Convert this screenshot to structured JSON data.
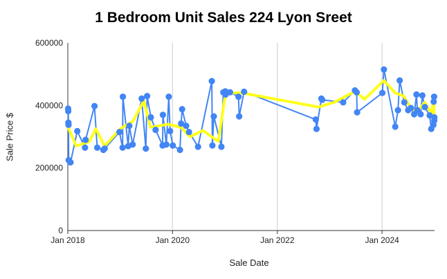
{
  "chart_data": {
    "type": "scatter",
    "title": "1 Bedroom Unit Sales 224 Lyon Sreet",
    "xlabel": "Sale Date",
    "ylabel": "Sale Price $",
    "xlim": [
      "2018-01-01",
      "2024-12-31"
    ],
    "ylim": [
      0,
      600000
    ],
    "x_ticks": [
      {
        "date": "2018-01-01",
        "label": "Jan 2018"
      },
      {
        "date": "2020-01-01",
        "label": "Jan 2020"
      },
      {
        "date": "2022-01-01",
        "label": "Jan 2022"
      },
      {
        "date": "2024-01-01",
        "label": "Jan 2024"
      }
    ],
    "y_ticks": [
      {
        "value": 0,
        "label": "0"
      },
      {
        "value": 200000,
        "label": "200000"
      },
      {
        "value": 400000,
        "label": "400000"
      },
      {
        "value": 600000,
        "label": "600000"
      }
    ],
    "grid": {
      "vertical": true,
      "horizontal": false
    },
    "legend": "none",
    "colors": {
      "sales": "#4285f4",
      "trend": "#ffff1a",
      "axis": "#333333",
      "grid": "#cccccc"
    },
    "series": [
      {
        "style": "line-with-points",
        "points": [
          [
            "2018-01-03",
            390000
          ],
          [
            "2018-01-04",
            382000
          ],
          [
            "2018-01-05",
            345000
          ],
          [
            "2018-01-06",
            338000
          ],
          [
            "2018-01-07",
            225000
          ],
          [
            "2018-01-20",
            218000
          ],
          [
            "2018-03-08",
            318000
          ],
          [
            "2018-05-01",
            265000
          ],
          [
            "2018-05-05",
            290000
          ],
          [
            "2018-07-06",
            398000
          ],
          [
            "2018-07-25",
            265000
          ],
          [
            "2018-09-06",
            258000
          ],
          [
            "2018-09-15",
            262000
          ],
          [
            "2018-12-27",
            315000
          ],
          [
            "2019-01-18",
            265000
          ],
          [
            "2019-01-20",
            428000
          ],
          [
            "2019-02-26",
            270000
          ],
          [
            "2019-03-06",
            335000
          ],
          [
            "2019-03-29",
            275000
          ],
          [
            "2019-05-31",
            422000
          ],
          [
            "2019-06-29",
            262000
          ],
          [
            "2019-07-08",
            430000
          ],
          [
            "2019-08-03",
            362000
          ],
          [
            "2019-09-05",
            322000
          ],
          [
            "2019-10-24",
            272000
          ],
          [
            "2019-10-26",
            370000
          ],
          [
            "2019-11-19",
            275000
          ],
          [
            "2019-12-06",
            428000
          ],
          [
            "2019-12-15",
            318000
          ],
          [
            "2020-01-03",
            272000
          ],
          [
            "2020-02-22",
            258000
          ],
          [
            "2020-03-01",
            342000
          ],
          [
            "2020-03-08",
            388000
          ],
          [
            "2020-04-05",
            335000
          ],
          [
            "2020-04-25",
            315000
          ],
          [
            "2020-06-27",
            268000
          ],
          [
            "2020-10-01",
            478000
          ],
          [
            "2020-10-05",
            272000
          ],
          [
            "2020-10-15",
            365000
          ],
          [
            "2020-12-07",
            268000
          ],
          [
            "2020-12-20",
            442000
          ],
          [
            "2021-01-03",
            445000
          ],
          [
            "2021-01-05",
            435000
          ],
          [
            "2021-02-05",
            442000
          ],
          [
            "2021-04-05",
            428000
          ],
          [
            "2021-04-10",
            365000
          ],
          [
            "2021-05-14",
            444000
          ],
          [
            "2022-09-26",
            355000
          ],
          [
            "2022-10-01",
            325000
          ],
          [
            "2022-11-04",
            422000
          ],
          [
            "2022-11-10",
            418000
          ],
          [
            "2023-04-05",
            410000
          ],
          [
            "2023-06-26",
            448000
          ],
          [
            "2023-07-08",
            442000
          ],
          [
            "2023-07-11",
            378000
          ],
          [
            "2024-01-03",
            440000
          ],
          [
            "2024-01-14",
            515000
          ],
          [
            "2024-04-02",
            332000
          ],
          [
            "2024-04-21",
            385000
          ],
          [
            "2024-05-03",
            480000
          ],
          [
            "2024-06-04",
            410000
          ],
          [
            "2024-07-01",
            385000
          ],
          [
            "2024-07-20",
            392000
          ],
          [
            "2024-08-12",
            372000
          ],
          [
            "2024-08-28",
            435000
          ],
          [
            "2024-09-03",
            385000
          ],
          [
            "2024-09-26",
            372000
          ],
          [
            "2024-10-08",
            432000
          ],
          [
            "2024-10-25",
            395000
          ],
          [
            "2024-11-28",
            368000
          ],
          [
            "2024-12-09",
            325000
          ],
          [
            "2024-12-24",
            338000
          ],
          [
            "2024-12-26",
            412000
          ],
          [
            "2024-12-29",
            428000
          ],
          [
            "2024-12-30",
            352000
          ],
          [
            "2024-12-31",
            362000
          ]
        ]
      },
      {
        "style": "trend-line",
        "points": [
          [
            "2018-01-03",
            330000
          ],
          [
            "2018-03-01",
            270000
          ],
          [
            "2018-06-01",
            285000
          ],
          [
            "2018-07-15",
            325000
          ],
          [
            "2018-09-15",
            270000
          ],
          [
            "2019-01-01",
            325000
          ],
          [
            "2019-04-01",
            350000
          ],
          [
            "2019-06-15",
            415000
          ],
          [
            "2019-08-01",
            330000
          ],
          [
            "2019-10-01",
            335000
          ],
          [
            "2019-12-01",
            340000
          ],
          [
            "2020-03-01",
            330000
          ],
          [
            "2020-05-01",
            300000
          ],
          [
            "2020-08-01",
            320000
          ],
          [
            "2020-11-15",
            285000
          ],
          [
            "2021-01-05",
            440000
          ],
          [
            "2021-05-01",
            440000
          ],
          [
            "2022-10-15",
            395000
          ],
          [
            "2023-02-01",
            410000
          ],
          [
            "2023-06-26",
            445000
          ],
          [
            "2023-09-01",
            420000
          ],
          [
            "2024-01-14",
            480000
          ],
          [
            "2024-04-01",
            440000
          ],
          [
            "2024-06-01",
            430000
          ],
          [
            "2024-07-20",
            390000
          ],
          [
            "2024-09-03",
            380000
          ],
          [
            "2024-10-25",
            410000
          ],
          [
            "2024-12-09",
            375000
          ],
          [
            "2024-12-26",
            415000
          ],
          [
            "2024-12-31",
            350000
          ]
        ]
      }
    ]
  }
}
